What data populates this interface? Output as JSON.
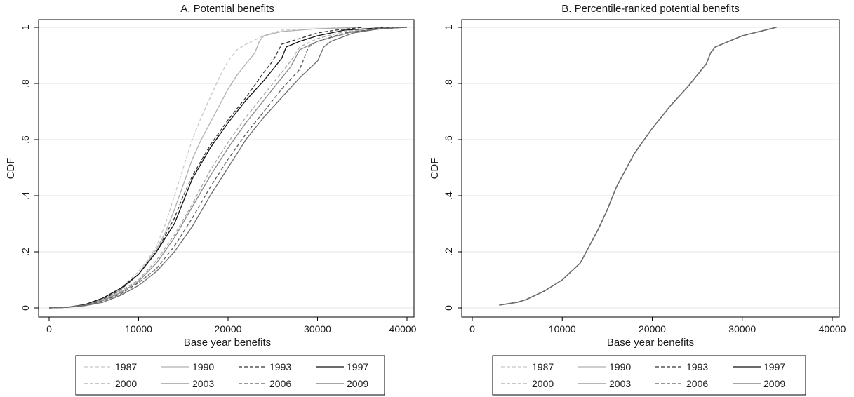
{
  "chart_data": [
    {
      "id": "A",
      "type": "line",
      "title": "A. Potential benefits",
      "xlabel": "Base year benefits",
      "ylabel": "CDF",
      "xlim": [
        0,
        40000
      ],
      "ylim": [
        0,
        1
      ],
      "x_ticks": [
        0,
        10000,
        20000,
        30000,
        40000
      ],
      "x_tick_labels": [
        "0",
        "10000",
        "20000",
        "30000",
        "40000"
      ],
      "y_ticks": [
        0,
        0.2,
        0.4,
        0.6,
        0.8,
        1
      ],
      "y_tick_labels": [
        "0",
        ".2",
        ".4",
        ".6",
        ".8",
        "1"
      ],
      "grid": true,
      "legend_position": "bottom",
      "series": [
        {
          "name": "1987",
          "color": "#c8c8c8",
          "dash": "dashed",
          "x": [
            0,
            2000,
            4000,
            6000,
            8000,
            10000,
            11000,
            12000,
            13000,
            14000,
            15000,
            16000,
            17000,
            18000,
            19000,
            20000,
            21000,
            22000,
            24000,
            26000,
            30000,
            34000
          ],
          "y": [
            0,
            0.002,
            0.01,
            0.03,
            0.07,
            0.13,
            0.17,
            0.22,
            0.3,
            0.4,
            0.5,
            0.6,
            0.68,
            0.75,
            0.82,
            0.88,
            0.92,
            0.94,
            0.97,
            0.99,
            0.995,
            1
          ]
        },
        {
          "name": "1990",
          "color": "#b0b0b0",
          "dash": "solid",
          "x": [
            0,
            2000,
            4000,
            6000,
            8000,
            10000,
            12000,
            13000,
            14000,
            15000,
            16000,
            17000,
            18000,
            19000,
            20000,
            21000,
            22000,
            23000,
            23500,
            24000,
            26000,
            30000,
            35000
          ],
          "y": [
            0,
            0.002,
            0.01,
            0.03,
            0.065,
            0.12,
            0.21,
            0.27,
            0.35,
            0.44,
            0.53,
            0.6,
            0.66,
            0.72,
            0.78,
            0.83,
            0.87,
            0.91,
            0.95,
            0.97,
            0.985,
            0.995,
            1
          ]
        },
        {
          "name": "1993",
          "color": "#333333",
          "dash": "dashed",
          "x": [
            0,
            2000,
            4000,
            6000,
            8000,
            10000,
            12000,
            14000,
            15000,
            16000,
            18000,
            20000,
            22000,
            24000,
            25000,
            26000,
            28000,
            30000,
            32000,
            35000
          ],
          "y": [
            0,
            0.002,
            0.01,
            0.03,
            0.065,
            0.12,
            0.2,
            0.32,
            0.4,
            0.47,
            0.58,
            0.67,
            0.75,
            0.84,
            0.88,
            0.94,
            0.96,
            0.98,
            0.99,
            1
          ]
        },
        {
          "name": "1997",
          "color": "#111111",
          "dash": "solid",
          "x": [
            0,
            2000,
            4000,
            6000,
            8000,
            10000,
            12000,
            14000,
            15000,
            16000,
            18000,
            20000,
            22000,
            24000,
            25000,
            26000,
            26500,
            28000,
            30000,
            33000,
            37000,
            40000
          ],
          "y": [
            0,
            0.002,
            0.012,
            0.035,
            0.07,
            0.12,
            0.2,
            0.3,
            0.38,
            0.46,
            0.57,
            0.66,
            0.74,
            0.81,
            0.85,
            0.89,
            0.93,
            0.95,
            0.97,
            0.99,
            0.998,
            1
          ]
        },
        {
          "name": "2000",
          "color": "#a8a8a8",
          "dash": "dashed",
          "x": [
            0,
            2000,
            4000,
            6000,
            8000,
            10000,
            12000,
            14000,
            16000,
            18000,
            20000,
            22000,
            24000,
            26000,
            27000,
            28000,
            30000,
            33000,
            37000,
            40000
          ],
          "y": [
            0,
            0.002,
            0.01,
            0.028,
            0.06,
            0.1,
            0.17,
            0.26,
            0.37,
            0.49,
            0.59,
            0.68,
            0.76,
            0.84,
            0.88,
            0.93,
            0.96,
            0.985,
            0.997,
            1
          ]
        },
        {
          "name": "2003",
          "color": "#8a8a8a",
          "dash": "solid",
          "x": [
            0,
            2000,
            4000,
            6000,
            8000,
            10000,
            12000,
            14000,
            16000,
            18000,
            20000,
            22000,
            24000,
            26000,
            27000,
            28000,
            30000,
            34000,
            38000,
            40000
          ],
          "y": [
            0,
            0.002,
            0.01,
            0.026,
            0.055,
            0.095,
            0.16,
            0.25,
            0.36,
            0.47,
            0.57,
            0.66,
            0.74,
            0.82,
            0.86,
            0.92,
            0.95,
            0.985,
            0.997,
            1
          ]
        },
        {
          "name": "2006",
          "color": "#5a5a5a",
          "dash": "dashed",
          "x": [
            0,
            2000,
            4000,
            6000,
            8000,
            10000,
            12000,
            14000,
            16000,
            18000,
            20000,
            22000,
            24000,
            26000,
            28000,
            29000,
            30000,
            33000,
            37000,
            40000
          ],
          "y": [
            0,
            0.002,
            0.009,
            0.024,
            0.05,
            0.09,
            0.14,
            0.22,
            0.32,
            0.43,
            0.53,
            0.62,
            0.7,
            0.78,
            0.85,
            0.93,
            0.95,
            0.98,
            0.995,
            1
          ]
        },
        {
          "name": "2009",
          "color": "#6e6e6e",
          "dash": "solid",
          "x": [
            0,
            2000,
            4000,
            6000,
            8000,
            10000,
            12000,
            14000,
            16000,
            18000,
            20000,
            22000,
            24000,
            26000,
            28000,
            30000,
            30700,
            31500,
            34000,
            37000,
            40000
          ],
          "y": [
            0,
            0.002,
            0.008,
            0.02,
            0.045,
            0.08,
            0.13,
            0.2,
            0.29,
            0.4,
            0.5,
            0.6,
            0.68,
            0.75,
            0.82,
            0.88,
            0.93,
            0.95,
            0.98,
            0.995,
            1
          ]
        }
      ]
    },
    {
      "id": "B",
      "type": "line",
      "title": "B. Percentile-ranked potential benefits",
      "xlabel": "Base year benefits",
      "ylabel": "CDF",
      "xlim": [
        0,
        40000
      ],
      "ylim": [
        0,
        1
      ],
      "x_ticks": [
        0,
        10000,
        20000,
        30000,
        40000
      ],
      "x_tick_labels": [
        "0",
        "10000",
        "20000",
        "30000",
        "40000"
      ],
      "y_ticks": [
        0,
        0.2,
        0.4,
        0.6,
        0.8,
        1
      ],
      "y_tick_labels": [
        "0",
        ".2",
        ".4",
        ".6",
        ".8",
        "1"
      ],
      "grid": true,
      "legend_position": "bottom",
      "series": [
        {
          "name": "1987",
          "color": "#c8c8c8",
          "dash": "dashed",
          "x": [
            3000,
            5000,
            6000,
            8000,
            10000,
            12000,
            13000,
            14000,
            15000,
            16000,
            17000,
            18000,
            20000,
            22000,
            24000,
            25000,
            26000,
            26500,
            27000,
            30000,
            33800
          ],
          "y": [
            0.01,
            0.02,
            0.03,
            0.06,
            0.1,
            0.16,
            0.22,
            0.28,
            0.35,
            0.43,
            0.49,
            0.55,
            0.64,
            0.72,
            0.79,
            0.83,
            0.87,
            0.91,
            0.93,
            0.97,
            1
          ]
        },
        {
          "name": "1990",
          "color": "#b0b0b0",
          "dash": "solid",
          "x": [
            3000,
            5000,
            6000,
            8000,
            10000,
            12000,
            13000,
            14000,
            15000,
            16000,
            17000,
            18000,
            20000,
            22000,
            24000,
            25000,
            26000,
            26500,
            27000,
            30000,
            33800
          ],
          "y": [
            0.01,
            0.02,
            0.03,
            0.06,
            0.1,
            0.16,
            0.22,
            0.28,
            0.35,
            0.43,
            0.49,
            0.55,
            0.64,
            0.72,
            0.79,
            0.83,
            0.87,
            0.91,
            0.93,
            0.97,
            1
          ]
        },
        {
          "name": "1993",
          "color": "#333333",
          "dash": "dashed",
          "x": [
            3000,
            5000,
            6000,
            8000,
            10000,
            12000,
            13000,
            14000,
            15000,
            16000,
            17000,
            18000,
            20000,
            22000,
            24000,
            25000,
            26000,
            26500,
            27000,
            30000,
            33800
          ],
          "y": [
            0.01,
            0.02,
            0.03,
            0.06,
            0.1,
            0.16,
            0.22,
            0.28,
            0.35,
            0.43,
            0.49,
            0.55,
            0.64,
            0.72,
            0.79,
            0.83,
            0.87,
            0.91,
            0.93,
            0.97,
            1
          ]
        },
        {
          "name": "1997",
          "color": "#111111",
          "dash": "solid",
          "x": [
            3000,
            5000,
            6000,
            8000,
            10000,
            12000,
            13000,
            14000,
            15000,
            16000,
            17000,
            18000,
            20000,
            22000,
            24000,
            25000,
            26000,
            26500,
            27000,
            30000,
            33800
          ],
          "y": [
            0.01,
            0.02,
            0.03,
            0.06,
            0.1,
            0.16,
            0.22,
            0.28,
            0.35,
            0.43,
            0.49,
            0.55,
            0.64,
            0.72,
            0.79,
            0.83,
            0.87,
            0.91,
            0.93,
            0.97,
            1
          ]
        },
        {
          "name": "2000",
          "color": "#a8a8a8",
          "dash": "dashed",
          "x": [
            3000,
            5000,
            6000,
            8000,
            10000,
            12000,
            13000,
            14000,
            15000,
            16000,
            17000,
            18000,
            20000,
            22000,
            24000,
            25000,
            26000,
            26500,
            27000,
            30000,
            33800
          ],
          "y": [
            0.01,
            0.02,
            0.03,
            0.06,
            0.1,
            0.16,
            0.22,
            0.28,
            0.35,
            0.43,
            0.49,
            0.55,
            0.64,
            0.72,
            0.79,
            0.83,
            0.87,
            0.91,
            0.93,
            0.97,
            1
          ]
        },
        {
          "name": "2003",
          "color": "#8a8a8a",
          "dash": "solid",
          "x": [
            3000,
            5000,
            6000,
            8000,
            10000,
            12000,
            13000,
            14000,
            15000,
            16000,
            17000,
            18000,
            20000,
            22000,
            24000,
            25000,
            26000,
            26500,
            27000,
            30000,
            33800
          ],
          "y": [
            0.01,
            0.02,
            0.03,
            0.06,
            0.1,
            0.16,
            0.22,
            0.28,
            0.35,
            0.43,
            0.49,
            0.55,
            0.64,
            0.72,
            0.79,
            0.83,
            0.87,
            0.91,
            0.93,
            0.97,
            1
          ]
        },
        {
          "name": "2006",
          "color": "#5a5a5a",
          "dash": "dashed",
          "x": [
            3000,
            5000,
            6000,
            8000,
            10000,
            12000,
            13000,
            14000,
            15000,
            16000,
            17000,
            18000,
            20000,
            22000,
            24000,
            25000,
            26000,
            26500,
            27000,
            30000,
            33800
          ],
          "y": [
            0.01,
            0.02,
            0.03,
            0.06,
            0.1,
            0.16,
            0.22,
            0.28,
            0.35,
            0.43,
            0.49,
            0.55,
            0.64,
            0.72,
            0.79,
            0.83,
            0.87,
            0.91,
            0.93,
            0.97,
            1
          ]
        },
        {
          "name": "2009",
          "color": "#6e6e6e",
          "dash": "solid",
          "x": [
            3000,
            5000,
            6000,
            8000,
            10000,
            12000,
            13000,
            14000,
            15000,
            16000,
            17000,
            18000,
            20000,
            22000,
            24000,
            25000,
            26000,
            26500,
            27000,
            30000,
            33800
          ],
          "y": [
            0.01,
            0.02,
            0.03,
            0.06,
            0.1,
            0.16,
            0.22,
            0.28,
            0.35,
            0.43,
            0.49,
            0.55,
            0.64,
            0.72,
            0.79,
            0.83,
            0.87,
            0.91,
            0.93,
            0.97,
            1
          ]
        }
      ]
    }
  ]
}
